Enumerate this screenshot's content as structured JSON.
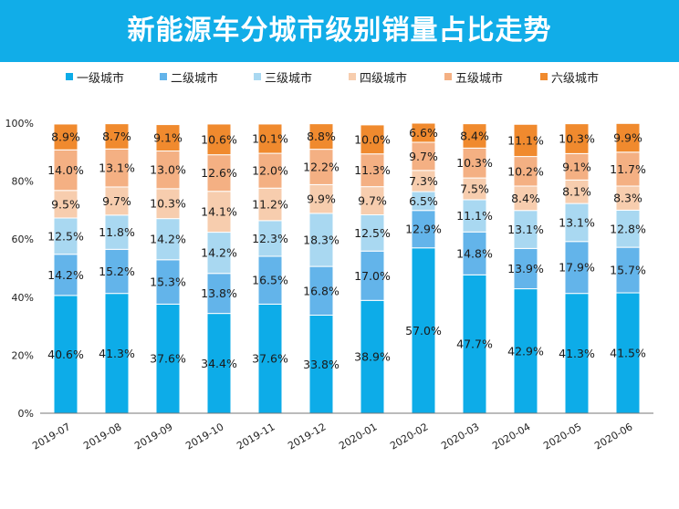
{
  "header": {
    "title": "新能源车分城市级别销量占比走势",
    "background": "#11ADE8"
  },
  "legend": [
    {
      "label": "一级城市",
      "color": "#0DACE8"
    },
    {
      "label": "二级城市",
      "color": "#63B4EA"
    },
    {
      "label": "三级城市",
      "color": "#A9D8F1"
    },
    {
      "label": "四级城市",
      "color": "#F7CDAE"
    },
    {
      "label": "五级城市",
      "color": "#F4B083"
    },
    {
      "label": "六级城市",
      "color": "#F08A2E"
    }
  ],
  "chart_data": {
    "type": "bar",
    "stacked": true,
    "title": "新能源车分城市级别销量占比走势",
    "categories": [
      "2019-07",
      "2019-08",
      "2019-09",
      "2019-10",
      "2019-11",
      "2019-12",
      "2020-01",
      "2020-02",
      "2020-03",
      "2020-04",
      "2020-05",
      "2020-06"
    ],
    "ylim": [
      0,
      100
    ],
    "yticks": [
      "0%",
      "20%",
      "40%",
      "60%",
      "80%",
      "100%"
    ],
    "ytick_values": [
      0,
      20,
      40,
      60,
      80,
      100
    ],
    "grid": false,
    "legend_position": "top",
    "series": [
      {
        "name": "一级城市",
        "color": "#0DACE8",
        "values": [
          40.6,
          41.3,
          37.6,
          34.4,
          37.6,
          33.8,
          38.9,
          57.0,
          47.7,
          42.9,
          41.3,
          41.5
        ]
      },
      {
        "name": "二级城市",
        "color": "#63B4EA",
        "values": [
          14.2,
          15.2,
          15.3,
          13.8,
          16.5,
          16.8,
          17.0,
          12.9,
          14.8,
          13.9,
          17.9,
          15.7
        ]
      },
      {
        "name": "三级城市",
        "color": "#A9D8F1",
        "values": [
          12.5,
          11.8,
          14.2,
          14.2,
          12.3,
          18.3,
          12.5,
          6.5,
          11.1,
          13.1,
          13.1,
          12.8
        ]
      },
      {
        "name": "四级城市",
        "color": "#F7CDAE",
        "values": [
          9.5,
          9.7,
          10.3,
          14.1,
          11.2,
          9.9,
          9.7,
          7.3,
          7.5,
          8.4,
          8.1,
          8.3
        ]
      },
      {
        "name": "五级城市",
        "color": "#F4B083",
        "values": [
          14.0,
          13.1,
          13.0,
          12.6,
          12.0,
          12.2,
          11.3,
          9.7,
          10.3,
          10.2,
          9.1,
          11.7
        ]
      },
      {
        "name": "六级城市",
        "color": "#F08A2E",
        "values": [
          8.9,
          8.7,
          9.1,
          10.6,
          10.1,
          8.8,
          10.0,
          6.6,
          8.4,
          11.1,
          10.3,
          9.9
        ]
      }
    ]
  }
}
